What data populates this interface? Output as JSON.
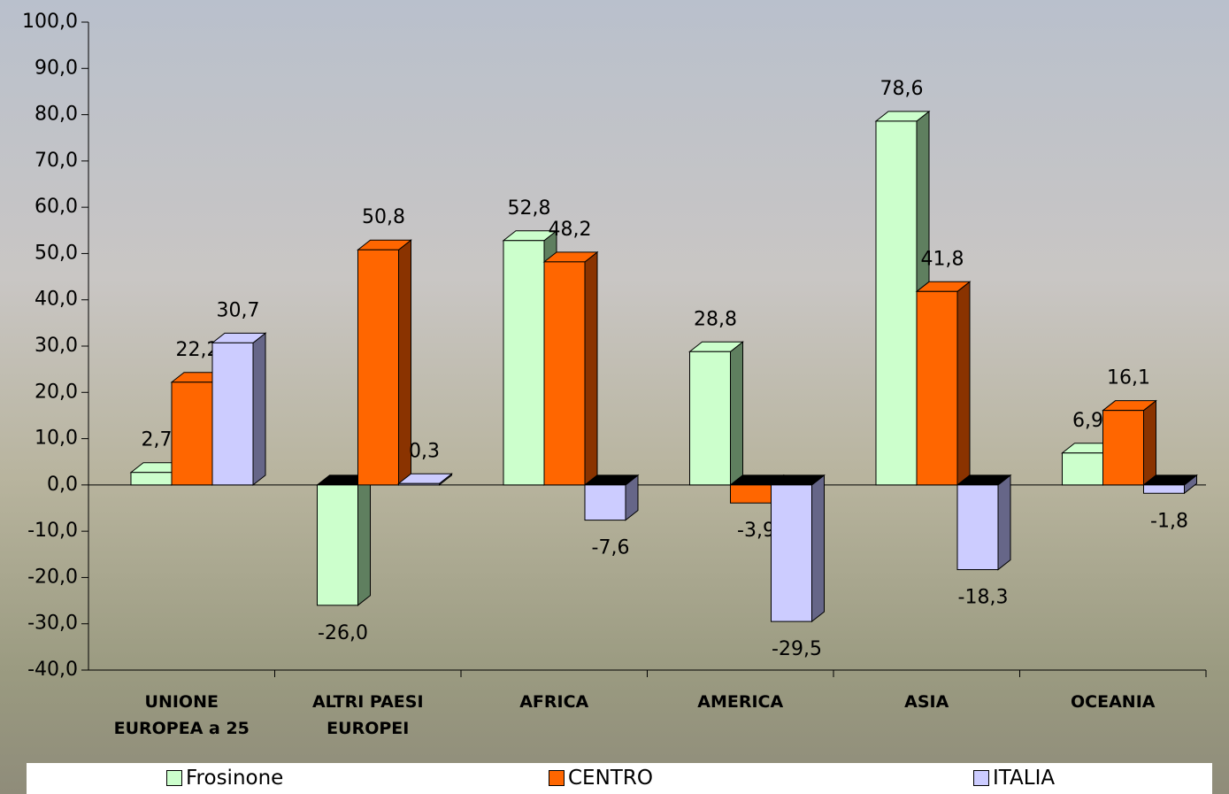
{
  "chart_data": {
    "type": "bar3d",
    "categories": [
      "UNIONE EUROPEA a 25",
      "ALTRI PAESI EUROPEI",
      "AFRICA",
      "AMERICA",
      "ASIA",
      "OCEANIA"
    ],
    "series": [
      {
        "name": "Frosinone",
        "color": "#ccffcc",
        "side": "#5f7f5f",
        "values": [
          2.7,
          -26.0,
          52.8,
          28.8,
          78.6,
          6.9
        ],
        "value_labels": [
          "2,7",
          "-26,0",
          "52,8",
          "28,8",
          "78,6",
          "6,9"
        ]
      },
      {
        "name": "CENTRO",
        "color": "#ff6600",
        "side": "#8a3300",
        "values": [
          22.2,
          50.8,
          48.2,
          -3.9,
          41.8,
          16.1
        ],
        "value_labels": [
          "22,2",
          "50,8",
          "48,2",
          "-3,9",
          "41,8",
          "16,1"
        ]
      },
      {
        "name": "ITALIA",
        "color": "#ccccff",
        "side": "#666688",
        "values": [
          30.7,
          0.3,
          -7.6,
          -29.5,
          -18.3,
          -1.8
        ],
        "value_labels": [
          "30,7",
          "0,3",
          "-7,6",
          "-29,5",
          "-18,3",
          "-1,8"
        ]
      }
    ],
    "ylim": [
      -40,
      100
    ],
    "yticks": [
      {
        "value": -40,
        "label": "-40,0"
      },
      {
        "value": -30,
        "label": "-30,0"
      },
      {
        "value": -20,
        "label": "-20,0"
      },
      {
        "value": -10,
        "label": "-10,0"
      },
      {
        "value": 0,
        "label": "0,0"
      },
      {
        "value": 10,
        "label": "10,0"
      },
      {
        "value": 20,
        "label": "20,0"
      },
      {
        "value": 30,
        "label": "30,0"
      },
      {
        "value": 40,
        "label": "40,0"
      },
      {
        "value": 50,
        "label": "50,0"
      },
      {
        "value": 60,
        "label": "60,0"
      },
      {
        "value": 70,
        "label": "70,0"
      },
      {
        "value": 80,
        "label": "80,0"
      },
      {
        "value": 90,
        "label": "90,0"
      },
      {
        "value": 100,
        "label": "100,0"
      }
    ],
    "legend": "bottom"
  }
}
